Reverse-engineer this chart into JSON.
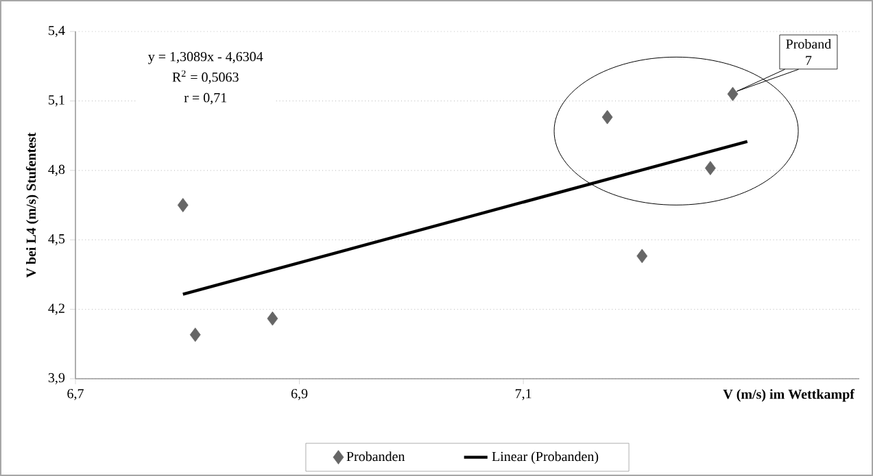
{
  "chart_data": {
    "type": "scatter",
    "xlabel": "V (m/s) im Wettkampf",
    "ylabel": "V bei L4 (m/s) Stufentest",
    "series": [
      {
        "name": "Probanden",
        "type": "scatter",
        "color": "#666666",
        "marker": "diamond",
        "x": [
          6.796,
          6.807,
          6.876,
          7.175,
          7.206,
          7.267,
          7.287
        ],
        "values": [
          4.65,
          4.09,
          4.16,
          5.03,
          4.43,
          4.81,
          5.13
        ]
      },
      {
        "name": "Linear (Probanden)",
        "type": "line",
        "color": "#000000",
        "marker": "none",
        "x": [
          6.796,
          7.3
        ],
        "values": [
          4.265,
          4.925
        ]
      }
    ],
    "xlim": [
      6.7,
      7.4
    ],
    "ylim": [
      3.9,
      5.4
    ],
    "xticks": [
      {
        "value": 6.7,
        "label": "6,7"
      },
      {
        "value": 6.9,
        "label": "6,9"
      },
      {
        "value": 7.1,
        "label": "7,1"
      }
    ],
    "yticks": [
      {
        "value": 3.9,
        "label": "3,9"
      },
      {
        "value": 4.2,
        "label": "4,2"
      },
      {
        "value": 4.5,
        "label": "4,5"
      },
      {
        "value": 4.8,
        "label": "4,8"
      },
      {
        "value": 5.1,
        "label": "5,1"
      },
      {
        "value": 5.4,
        "label": "5,4"
      }
    ],
    "grid": "y",
    "legend": "bottom",
    "annotations": [
      "y = 1,3089x - 4,6304",
      "R$^{2}$ = 0,5063",
      "r = 0,71",
      "Proband 7"
    ]
  }
}
